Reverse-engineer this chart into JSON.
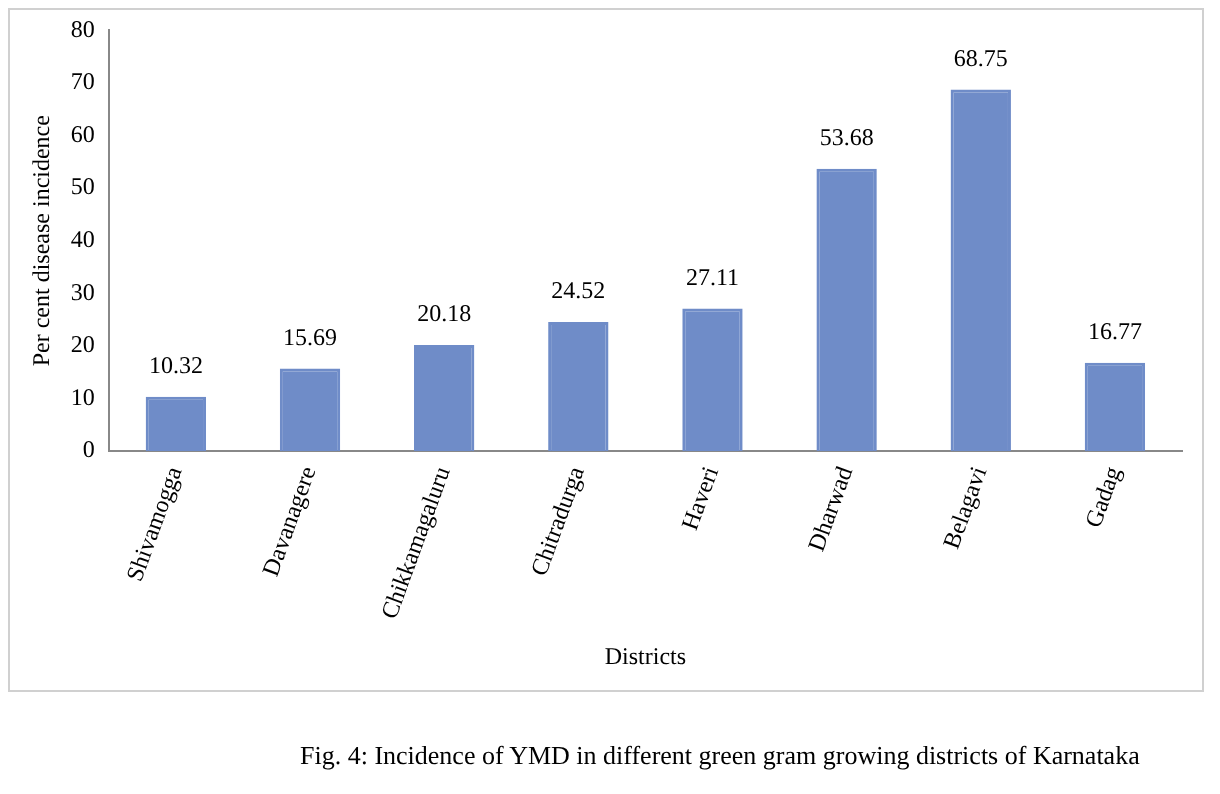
{
  "chart_data": {
    "type": "bar",
    "xlabel": "Districts",
    "ylabel": "Per cent disease incidence",
    "categories": [
      "Shivamogga",
      "Davanagere",
      "Chikkamagaluru",
      "Chitradurga",
      "Haveri",
      "Dharwad",
      "Belagavi",
      "Gadag"
    ],
    "values": [
      10.32,
      15.69,
      20.18,
      24.52,
      27.11,
      53.68,
      68.75,
      16.77
    ],
    "color": "#6f8cc8",
    "ylim": [
      0,
      80
    ],
    "yticks": [
      0,
      10,
      20,
      30,
      40,
      50,
      60,
      70,
      80
    ],
    "grid": false,
    "legend": false,
    "data_labels": true,
    "annotations": [
      "Fig. 4: Incidence of YMD in different green gram growing districts of Karnataka"
    ]
  }
}
